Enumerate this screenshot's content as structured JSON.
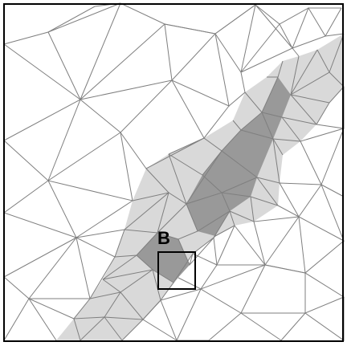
{
  "figure": {
    "label": "B",
    "colors": {
      "background": "#ffffff",
      "mesh_line": "#7f7f7f",
      "light_band": "#d9d9d9",
      "dark_band": "#999999",
      "frame": "#000000",
      "highlight_box": "#000000"
    }
  }
}
